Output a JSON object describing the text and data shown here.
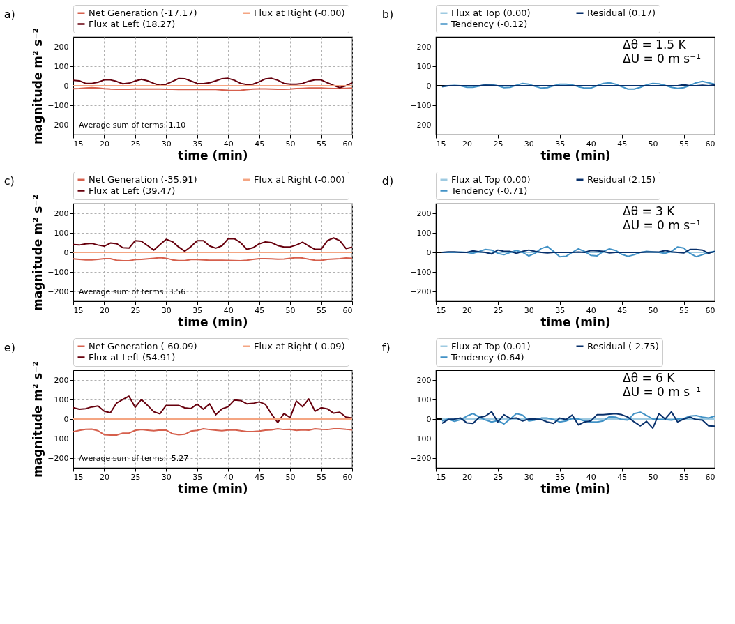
{
  "chart_data": [
    {
      "type": "line",
      "title": "a)",
      "xlabel": "time (min)",
      "ylabel": "magnitude m² s⁻²",
      "xlim": [
        15,
        60
      ],
      "xticks": [
        15,
        20,
        25,
        30,
        35,
        40,
        45,
        50,
        55,
        60
      ],
      "ylim": [
        -250,
        250
      ],
      "yticks": [
        -200,
        -100,
        0,
        100,
        200
      ],
      "grid": true,
      "legend": "top",
      "line_style": "solid",
      "annotations": [
        "Average sum of terms: 1.10"
      ],
      "x": [
        15,
        16,
        17,
        18,
        19,
        20,
        21,
        22,
        23,
        24,
        25,
        26,
        27,
        28,
        29,
        30,
        31,
        32,
        33,
        34,
        35,
        36,
        37,
        38,
        39,
        40,
        41,
        42,
        43,
        44,
        45,
        46,
        47,
        48,
        49,
        50,
        51,
        52,
        53,
        54,
        55,
        56,
        57,
        58,
        59,
        60
      ],
      "series": [
        {
          "name": "Net Generation (-17.17)",
          "color": "#d6604d",
          "values": [
            -15,
            -14,
            -12,
            -10,
            -12,
            -15,
            -17,
            -18,
            -18,
            -18,
            -17,
            -17,
            -17,
            -17,
            -17,
            -18,
            -18,
            -19,
            -19,
            -19,
            -19,
            -19,
            -18,
            -19,
            -21,
            -23,
            -24,
            -23,
            -20,
            -17,
            -16,
            -16,
            -17,
            -18,
            -18,
            -17,
            -14,
            -13,
            -12,
            -12,
            -12,
            -13,
            -14,
            -14,
            -13,
            -12
          ]
        },
        {
          "name": "Flux at Left (18.27)",
          "color": "#67000d",
          "values": [
            28,
            25,
            12,
            12,
            18,
            30,
            30,
            22,
            10,
            13,
            24,
            33,
            25,
            12,
            2,
            8,
            22,
            37,
            36,
            24,
            12,
            11,
            15,
            25,
            36,
            38,
            28,
            12,
            6,
            8,
            20,
            35,
            38,
            28,
            12,
            8,
            8,
            12,
            23,
            30,
            30,
            15,
            2,
            -10,
            0,
            15
          ]
        },
        {
          "name": "Flux at Right (-0.00)",
          "color": "#f4a582",
          "values": [
            0,
            0,
            0,
            0,
            0,
            0,
            0,
            0,
            0,
            0,
            0,
            0,
            0,
            0,
            0,
            0,
            0,
            0,
            0,
            0,
            0,
            0,
            0,
            0,
            0,
            0,
            0,
            0,
            0,
            0,
            0,
            0,
            0,
            0,
            0,
            0,
            0,
            0,
            0,
            0,
            0,
            0,
            0,
            0,
            0,
            0
          ]
        }
      ]
    },
    {
      "type": "line",
      "title": "b)",
      "xlabel": "time (min)",
      "xlim": [
        15,
        60
      ],
      "xticks": [
        15,
        20,
        25,
        30,
        35,
        40,
        45,
        50,
        55,
        60
      ],
      "ylim": [
        -250,
        250
      ],
      "yticks": [
        -200,
        -100,
        0,
        100,
        200
      ],
      "legend": "top",
      "line_style": "solid",
      "annotations": [
        "Δθ  = 1.5 K",
        "ΔU = 0 m s⁻¹"
      ],
      "ref_lines": [
        {
          "axis": "y",
          "value": 0,
          "color": "#000000"
        }
      ],
      "x": [
        16,
        17,
        18,
        19,
        20,
        21,
        22,
        23,
        24,
        25,
        26,
        27,
        28,
        29,
        30,
        31,
        32,
        33,
        34,
        35,
        36,
        37,
        38,
        39,
        40,
        41,
        42,
        43,
        44,
        45,
        46,
        47,
        48,
        49,
        50,
        51,
        52,
        53,
        54,
        55,
        56,
        57,
        58,
        59,
        60
      ],
      "series": [
        {
          "name": "Flux at Top (0.00)",
          "color": "#9ecae1",
          "values": [
            null,
            null,
            null,
            null,
            null,
            null,
            null,
            null,
            null,
            null,
            null,
            null,
            null,
            null,
            null,
            null,
            null,
            null,
            null,
            null,
            null,
            null,
            null,
            null,
            null,
            null,
            null,
            null,
            null,
            null,
            null,
            null,
            null,
            null,
            null,
            null,
            null,
            null,
            null,
            null,
            null,
            null,
            null,
            null,
            null
          ]
        },
        {
          "name": "Tendency (-0.12)",
          "color": "#4292c6",
          "values": [
            -5,
            0,
            2,
            0,
            -8,
            -8,
            -2,
            6,
            5,
            0,
            -10,
            -8,
            3,
            12,
            8,
            -3,
            -12,
            -10,
            0,
            8,
            8,
            5,
            -5,
            -12,
            -12,
            0,
            12,
            15,
            8,
            -5,
            -17,
            -17,
            -8,
            5,
            12,
            10,
            2,
            -8,
            -13,
            -10,
            2,
            15,
            22,
            15,
            8
          ]
        },
        {
          "name": "Residual (0.17)",
          "color": "#08306b",
          "values": [
            -3,
            0,
            0,
            0,
            0,
            0,
            0,
            3,
            2,
            0,
            0,
            0,
            0,
            0,
            0,
            0,
            0,
            0,
            0,
            0,
            0,
            0,
            0,
            0,
            0,
            0,
            0,
            0,
            0,
            0,
            0,
            0,
            0,
            0,
            0,
            0,
            0,
            0,
            0,
            5,
            0,
            0,
            3,
            0,
            5
          ]
        }
      ]
    },
    {
      "type": "line",
      "title": "c)",
      "xlabel": "time (min)",
      "ylabel": "magnitude m² s⁻²",
      "xlim": [
        15,
        60
      ],
      "xticks": [
        15,
        20,
        25,
        30,
        35,
        40,
        45,
        50,
        55,
        60
      ],
      "ylim": [
        -250,
        250
      ],
      "yticks": [
        -200,
        -100,
        0,
        100,
        200
      ],
      "grid": true,
      "legend": "top",
      "line_style": "solid",
      "annotations": [
        "Average sum of terms: 3.56"
      ],
      "x": [
        15,
        16,
        17,
        18,
        19,
        20,
        21,
        22,
        23,
        24,
        25,
        26,
        27,
        28,
        29,
        30,
        31,
        32,
        33,
        34,
        35,
        36,
        37,
        38,
        39,
        40,
        41,
        42,
        43,
        44,
        45,
        46,
        47,
        48,
        49,
        50,
        51,
        52,
        53,
        54,
        55,
        56,
        57,
        58,
        59,
        60
      ],
      "series": [
        {
          "name": "Net Generation (-35.91)",
          "color": "#d6604d",
          "values": [
            -33,
            -36,
            -38,
            -38,
            -36,
            -32,
            -32,
            -40,
            -43,
            -43,
            -37,
            -36,
            -33,
            -30,
            -27,
            -30,
            -38,
            -42,
            -42,
            -37,
            -37,
            -38,
            -40,
            -40,
            -40,
            -41,
            -42,
            -43,
            -40,
            -36,
            -32,
            -32,
            -33,
            -35,
            -34,
            -30,
            -27,
            -29,
            -35,
            -40,
            -41,
            -36,
            -34,
            -32,
            -29,
            -30
          ]
        },
        {
          "name": "Flux at Left (39.47)",
          "color": "#67000d",
          "values": [
            40,
            38,
            44,
            46,
            38,
            32,
            48,
            45,
            24,
            22,
            60,
            57,
            35,
            12,
            40,
            67,
            55,
            28,
            6,
            30,
            60,
            60,
            33,
            22,
            34,
            70,
            70,
            50,
            16,
            24,
            44,
            54,
            50,
            35,
            28,
            28,
            38,
            52,
            33,
            16,
            16,
            60,
            74,
            60,
            20,
            27
          ]
        },
        {
          "name": "Flux at Right (-0.00)",
          "color": "#f4a582",
          "values": [
            0,
            0,
            0,
            0,
            0,
            0,
            0,
            0,
            0,
            0,
            0,
            0,
            0,
            0,
            0,
            0,
            0,
            0,
            0,
            0,
            0,
            0,
            0,
            0,
            0,
            0,
            0,
            0,
            0,
            0,
            0,
            0,
            0,
            0,
            0,
            0,
            0,
            0,
            0,
            0,
            0,
            0,
            0,
            0,
            0,
            0
          ]
        }
      ]
    },
    {
      "type": "line",
      "title": "d)",
      "xlabel": "time (min)",
      "xlim": [
        15,
        60
      ],
      "xticks": [
        15,
        20,
        25,
        30,
        35,
        40,
        45,
        50,
        55,
        60
      ],
      "ylim": [
        -250,
        250
      ],
      "yticks": [
        -200,
        -100,
        0,
        100,
        200
      ],
      "legend": "top",
      "line_style": "solid",
      "annotations": [
        "Δθ  = 3 K",
        "ΔU = 0 m s⁻¹"
      ],
      "ref_lines": [
        {
          "axis": "y",
          "value": 0,
          "color": "#000000"
        }
      ],
      "x": [
        16,
        17,
        18,
        19,
        20,
        21,
        22,
        23,
        24,
        25,
        26,
        27,
        28,
        29,
        30,
        31,
        32,
        33,
        34,
        35,
        36,
        37,
        38,
        39,
        40,
        41,
        42,
        43,
        44,
        45,
        46,
        47,
        48,
        49,
        50,
        51,
        52,
        53,
        54,
        55,
        56,
        57,
        58,
        59,
        60
      ],
      "series": [
        {
          "name": "Flux at Top (0.00)",
          "color": "#9ecae1",
          "values": [
            0,
            0,
            0,
            0,
            0,
            0,
            0,
            0,
            0,
            0,
            0,
            0,
            0,
            0,
            0,
            0,
            0,
            0,
            0,
            0,
            0,
            0,
            0,
            0,
            0,
            0,
            0,
            0,
            0,
            0,
            0,
            0,
            0,
            0,
            0,
            0,
            0,
            0,
            0,
            0,
            0,
            0,
            0,
            0,
            0
          ]
        },
        {
          "name": "Tendency (-0.71)",
          "color": "#4292c6",
          "values": [
            0,
            0,
            0,
            2,
            0,
            -5,
            5,
            15,
            12,
            -5,
            -12,
            0,
            10,
            0,
            -18,
            -5,
            20,
            30,
            5,
            -22,
            -20,
            0,
            18,
            5,
            -15,
            -18,
            5,
            18,
            10,
            -10,
            -20,
            -12,
            0,
            5,
            3,
            0,
            -5,
            5,
            28,
            22,
            -5,
            -22,
            -12,
            0,
            5
          ]
        },
        {
          "name": "Residual (2.15)",
          "color": "#08306b",
          "values": [
            0,
            3,
            3,
            0,
            0,
            8,
            3,
            0,
            -8,
            12,
            5,
            5,
            -5,
            5,
            12,
            5,
            0,
            -3,
            0,
            0,
            0,
            0,
            2,
            0,
            10,
            8,
            5,
            -3,
            0,
            0,
            0,
            0,
            0,
            2,
            2,
            2,
            10,
            3,
            0,
            -3,
            15,
            15,
            12,
            -5,
            5
          ]
        }
      ]
    },
    {
      "type": "line",
      "title": "e)",
      "xlabel": "time (min)",
      "ylabel": "magnitude m² s⁻²",
      "xlim": [
        15,
        60
      ],
      "xticks": [
        15,
        20,
        25,
        30,
        35,
        40,
        45,
        50,
        55,
        60
      ],
      "ylim": [
        -250,
        250
      ],
      "yticks": [
        -200,
        -100,
        0,
        100,
        200
      ],
      "grid": true,
      "legend": "top",
      "line_style": "solid",
      "annotations": [
        "Average sum of terms: -5.27"
      ],
      "x": [
        15,
        16,
        17,
        18,
        19,
        20,
        21,
        22,
        23,
        24,
        25,
        26,
        27,
        28,
        29,
        30,
        31,
        32,
        33,
        34,
        35,
        36,
        37,
        38,
        39,
        40,
        41,
        42,
        43,
        44,
        45,
        46,
        47,
        48,
        49,
        50,
        51,
        52,
        53,
        54,
        55,
        56,
        57,
        58,
        59,
        60
      ],
      "series": [
        {
          "name": "Net Generation (-60.09)",
          "color": "#d6604d",
          "values": [
            -65,
            -58,
            -53,
            -52,
            -60,
            -80,
            -82,
            -82,
            -72,
            -72,
            -58,
            -54,
            -57,
            -60,
            -56,
            -57,
            -75,
            -80,
            -78,
            -62,
            -58,
            -50,
            -54,
            -57,
            -60,
            -56,
            -55,
            -60,
            -64,
            -64,
            -62,
            -57,
            -55,
            -50,
            -54,
            -53,
            -58,
            -55,
            -57,
            -50,
            -53,
            -54,
            -50,
            -50,
            -53,
            -55
          ]
        },
        {
          "name": "Flux at Left (54.91)",
          "color": "#67000d",
          "values": [
            58,
            50,
            53,
            62,
            67,
            40,
            32,
            82,
            100,
            117,
            60,
            100,
            70,
            37,
            27,
            70,
            70,
            70,
            57,
            54,
            77,
            50,
            78,
            22,
            52,
            63,
            97,
            95,
            78,
            80,
            88,
            75,
            25,
            -18,
            28,
            7,
            92,
            63,
            103,
            40,
            58,
            52,
            30,
            35,
            10,
            5
          ]
        },
        {
          "name": "Flux at Right (-0.09)",
          "color": "#f4a582",
          "values": [
            0,
            0,
            0,
            0,
            0,
            0,
            0,
            0,
            0,
            0,
            0,
            0,
            0,
            0,
            0,
            0,
            0,
            0,
            0,
            0,
            0,
            0,
            0,
            0,
            0,
            0,
            0,
            0,
            0,
            0,
            0,
            0,
            0,
            0,
            0,
            0,
            0,
            0,
            0,
            0,
            0,
            0,
            0,
            0,
            0,
            0
          ]
        }
      ]
    },
    {
      "type": "line",
      "title": "f)",
      "xlabel": "time (min)",
      "xlim": [
        15,
        60
      ],
      "xticks": [
        15,
        20,
        25,
        30,
        35,
        40,
        45,
        50,
        55,
        60
      ],
      "ylim": [
        -250,
        250
      ],
      "yticks": [
        -200,
        -100,
        0,
        100,
        200
      ],
      "legend": "top",
      "line_style": "solid",
      "annotations": [
        "Δθ  = 6 K",
        "ΔU = 0 m s⁻¹"
      ],
      "ref_lines": [
        {
          "axis": "y",
          "value": 0,
          "color": "#000000"
        }
      ],
      "x": [
        16,
        17,
        18,
        19,
        20,
        21,
        22,
        23,
        24,
        25,
        26,
        27,
        28,
        29,
        30,
        31,
        32,
        33,
        34,
        35,
        36,
        37,
        38,
        39,
        40,
        41,
        42,
        43,
        44,
        45,
        46,
        47,
        48,
        49,
        50,
        51,
        52,
        53,
        54,
        55,
        56,
        57,
        58,
        59,
        60
      ],
      "series": [
        {
          "name": "Flux at Top (0.01)",
          "color": "#9ecae1",
          "values": [
            0,
            0,
            0,
            0,
            0,
            0,
            0,
            0,
            0,
            0,
            0,
            0,
            0,
            0,
            0,
            0,
            0,
            0,
            0,
            0,
            0,
            0,
            0,
            0,
            0,
            0,
            0,
            0,
            0,
            0,
            0,
            0,
            0,
            0,
            0,
            0,
            0,
            0,
            0,
            0,
            0,
            0,
            0,
            0,
            0
          ]
        },
        {
          "name": "Tendency (0.64)",
          "color": "#4292c6",
          "values": [
            -10,
            0,
            -12,
            -3,
            15,
            28,
            10,
            -5,
            -15,
            -8,
            -25,
            0,
            28,
            20,
            -10,
            -5,
            5,
            5,
            -3,
            -15,
            -10,
            3,
            0,
            -10,
            -15,
            -15,
            -10,
            12,
            10,
            -3,
            -5,
            28,
            35,
            18,
            0,
            -3,
            -3,
            -5,
            0,
            3,
            15,
            18,
            10,
            5,
            15
          ]
        },
        {
          "name": "Residual (-2.75)",
          "color": "#08306b",
          "values": [
            -22,
            -2,
            0,
            5,
            -20,
            -22,
            8,
            15,
            37,
            -15,
            22,
            3,
            5,
            -10,
            0,
            0,
            -3,
            -15,
            -22,
            5,
            -3,
            20,
            -30,
            -15,
            -10,
            22,
            22,
            25,
            28,
            22,
            10,
            -15,
            -35,
            -12,
            -47,
            28,
            0,
            37,
            -15,
            0,
            10,
            -3,
            -5,
            -35,
            -37
          ]
        }
      ]
    }
  ]
}
